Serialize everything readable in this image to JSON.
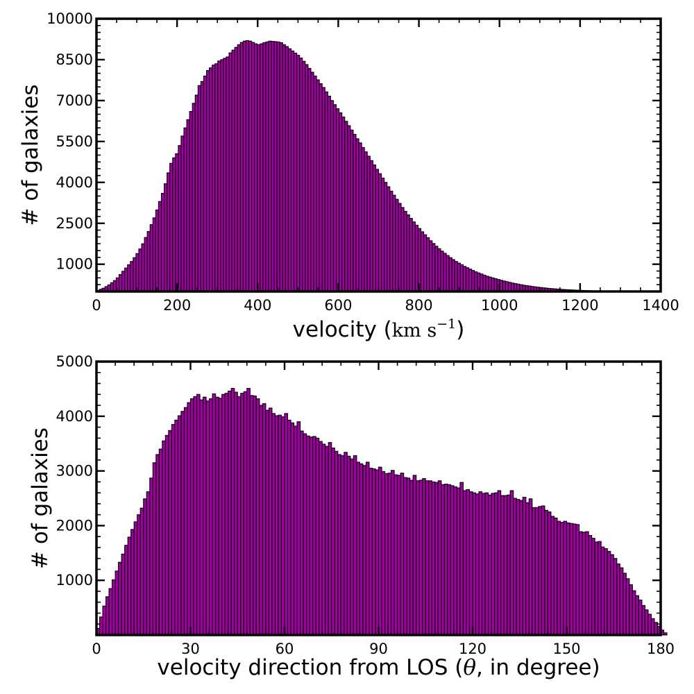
{
  "chart_data": [
    {
      "type": "bar",
      "subtype": "histogram",
      "xlabel_text": "velocity (",
      "xlabel_unit_base": "km s",
      "xlabel_unit_exp": "−1",
      "xlabel_close": ")",
      "ylabel": "# of galaxies",
      "xlim": [
        0,
        1400
      ],
      "ylim": [
        0,
        10000
      ],
      "xticks": [
        "0",
        "200",
        "400",
        "600",
        "800",
        "1000",
        "1200",
        "1400"
      ],
      "yticks": [
        "1000",
        "2500",
        "4000",
        "5500",
        "7000",
        "8500",
        "10000"
      ],
      "bin_width": 7,
      "bar_color": "#a000a0",
      "grid": false,
      "values": [
        40,
        80,
        120,
        180,
        240,
        320,
        400,
        500,
        620,
        740,
        860,
        980,
        1100,
        1240,
        1390,
        1560,
        1750,
        1980,
        2200,
        2450,
        2700,
        2990,
        3300,
        3600,
        3950,
        4350,
        4700,
        4900,
        5050,
        5350,
        5700,
        6000,
        6300,
        6600,
        6900,
        7200,
        7550,
        7700,
        7900,
        8100,
        8200,
        8300,
        8350,
        8450,
        8500,
        8550,
        8600,
        8750,
        8850,
        8950,
        9050,
        9130,
        9180,
        9200,
        9180,
        9130,
        9080,
        9050,
        9080,
        9120,
        9150,
        9180,
        9170,
        9160,
        9150,
        9120,
        9050,
        8980,
        8900,
        8820,
        8740,
        8660,
        8560,
        8440,
        8320,
        8180,
        8040,
        7900,
        7760,
        7620,
        7480,
        7320,
        7160,
        7000,
        6850,
        6700,
        6550,
        6400,
        6240,
        6080,
        5920,
        5760,
        5600,
        5450,
        5280,
        5120,
        4960,
        4800,
        4640,
        4480,
        4320,
        4160,
        4000,
        3840,
        3680,
        3530,
        3380,
        3230,
        3080,
        2940,
        2810,
        2680,
        2550,
        2430,
        2310,
        2190,
        2080,
        1970,
        1860,
        1760,
        1660,
        1570,
        1480,
        1400,
        1320,
        1240,
        1170,
        1100,
        1040,
        980,
        920,
        870,
        820,
        770,
        720,
        680,
        640,
        600,
        560,
        530,
        500,
        470,
        440,
        410,
        385,
        360,
        335,
        310,
        290,
        270,
        250,
        230,
        215,
        200,
        185,
        170,
        158,
        146,
        135,
        125,
        115,
        106,
        97,
        89,
        82,
        75,
        68,
        62,
        57,
        52,
        47,
        43,
        39,
        35,
        32,
        29,
        26,
        23,
        21,
        19,
        17,
        15,
        13,
        11,
        10,
        8,
        7,
        6,
        5,
        4,
        3,
        2,
        2,
        1,
        1,
        1,
        1
      ]
    },
    {
      "type": "bar",
      "subtype": "histogram",
      "xlabel_text_before": "velocity direction from LOS (",
      "xlabel_symbol": "θ",
      "xlabel_text_after": ", in degree)",
      "ylabel": "# of galaxies",
      "xlim": [
        0,
        180
      ],
      "ylim": [
        0,
        5000
      ],
      "xticks": [
        "0",
        "30",
        "60",
        "90",
        "120",
        "150",
        "180"
      ],
      "yticks": [
        "1000",
        "2000",
        "3000",
        "4000",
        "5000"
      ],
      "bin_width": 1,
      "bar_color": "#a000a0",
      "grid": false,
      "values": [
        120,
        330,
        530,
        700,
        850,
        1010,
        1170,
        1330,
        1480,
        1640,
        1790,
        1930,
        2070,
        2200,
        2320,
        2490,
        2620,
        2870,
        3150,
        3300,
        3400,
        3550,
        3650,
        3740,
        3850,
        3930,
        4010,
        4090,
        4160,
        4250,
        4320,
        4360,
        4400,
        4300,
        4350,
        4280,
        4320,
        4410,
        4350,
        4330,
        4400,
        4420,
        4460,
        4510,
        4440,
        4360,
        4420,
        4450,
        4510,
        4380,
        4370,
        4320,
        4200,
        4230,
        4110,
        4150,
        4050,
        4010,
        4020,
        3990,
        4050,
        3930,
        3880,
        3820,
        3900,
        3730,
        3680,
        3640,
        3620,
        3630,
        3600,
        3540,
        3490,
        3450,
        3520,
        3420,
        3360,
        3300,
        3280,
        3340,
        3270,
        3220,
        3280,
        3160,
        3130,
        3100,
        3160,
        3050,
        3040,
        3020,
        3070,
        2990,
        2950,
        2960,
        3010,
        2930,
        2920,
        2960,
        2880,
        2870,
        2830,
        2920,
        2820,
        2830,
        2860,
        2820,
        2820,
        2800,
        2790,
        2820,
        2750,
        2760,
        2750,
        2730,
        2710,
        2690,
        2790,
        2640,
        2660,
        2620,
        2600,
        2580,
        2620,
        2590,
        2600,
        2560,
        2590,
        2600,
        2640,
        2550,
        2550,
        2560,
        2640,
        2500,
        2480,
        2460,
        2520,
        2420,
        2490,
        2330,
        2330,
        2350,
        2360,
        2280,
        2250,
        2170,
        2140,
        2080,
        2060,
        2080,
        2050,
        2040,
        2030,
        2020,
        1890,
        1880,
        1890,
        1820,
        1770,
        1700,
        1710,
        1610,
        1580,
        1530,
        1470,
        1400,
        1300,
        1230,
        1130,
        1030,
        920,
        810,
        720,
        640,
        540,
        460,
        380,
        300,
        230,
        160,
        90,
        40
      ]
    }
  ]
}
